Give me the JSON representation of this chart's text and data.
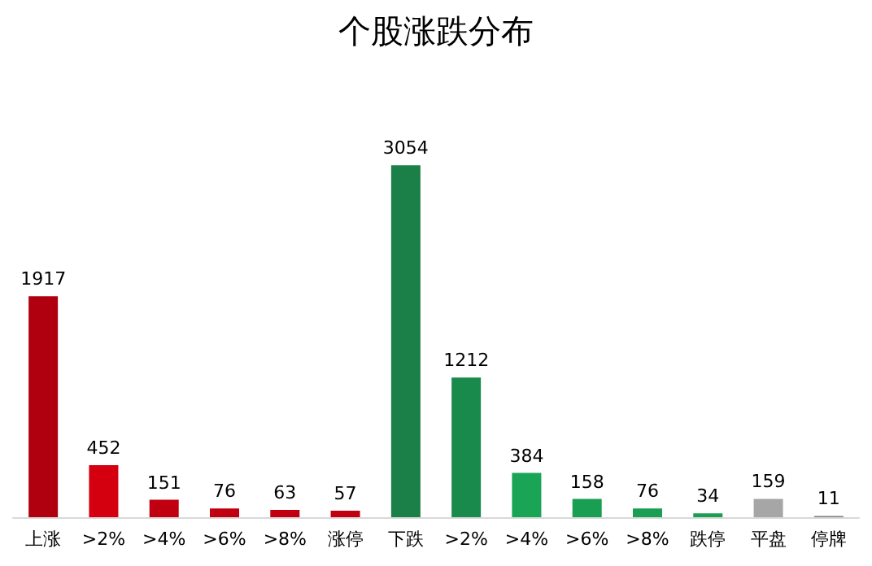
{
  "chart_data": {
    "type": "bar",
    "title": "个股涨跌分布",
    "categories": [
      "上涨",
      ">2%",
      ">4%",
      ">6%",
      ">8%",
      "涨停",
      "下跌",
      ">2%",
      ">4%",
      ">6%",
      ">8%",
      "跌停",
      "平盘",
      "停牌"
    ],
    "values": [
      1917,
      452,
      151,
      76,
      63,
      57,
      3054,
      1212,
      384,
      158,
      76,
      34,
      159,
      11
    ],
    "colors": [
      "#b00010",
      "#d40010",
      "#c00010",
      "#c00010",
      "#c00010",
      "#c00010",
      "#1a8048",
      "#1a8a4c",
      "#1aa556",
      "#1a9e52",
      "#1a9e52",
      "#1a9e52",
      "#a6a6a6",
      "#7f7f7f"
    ],
    "data_labels": true
  }
}
